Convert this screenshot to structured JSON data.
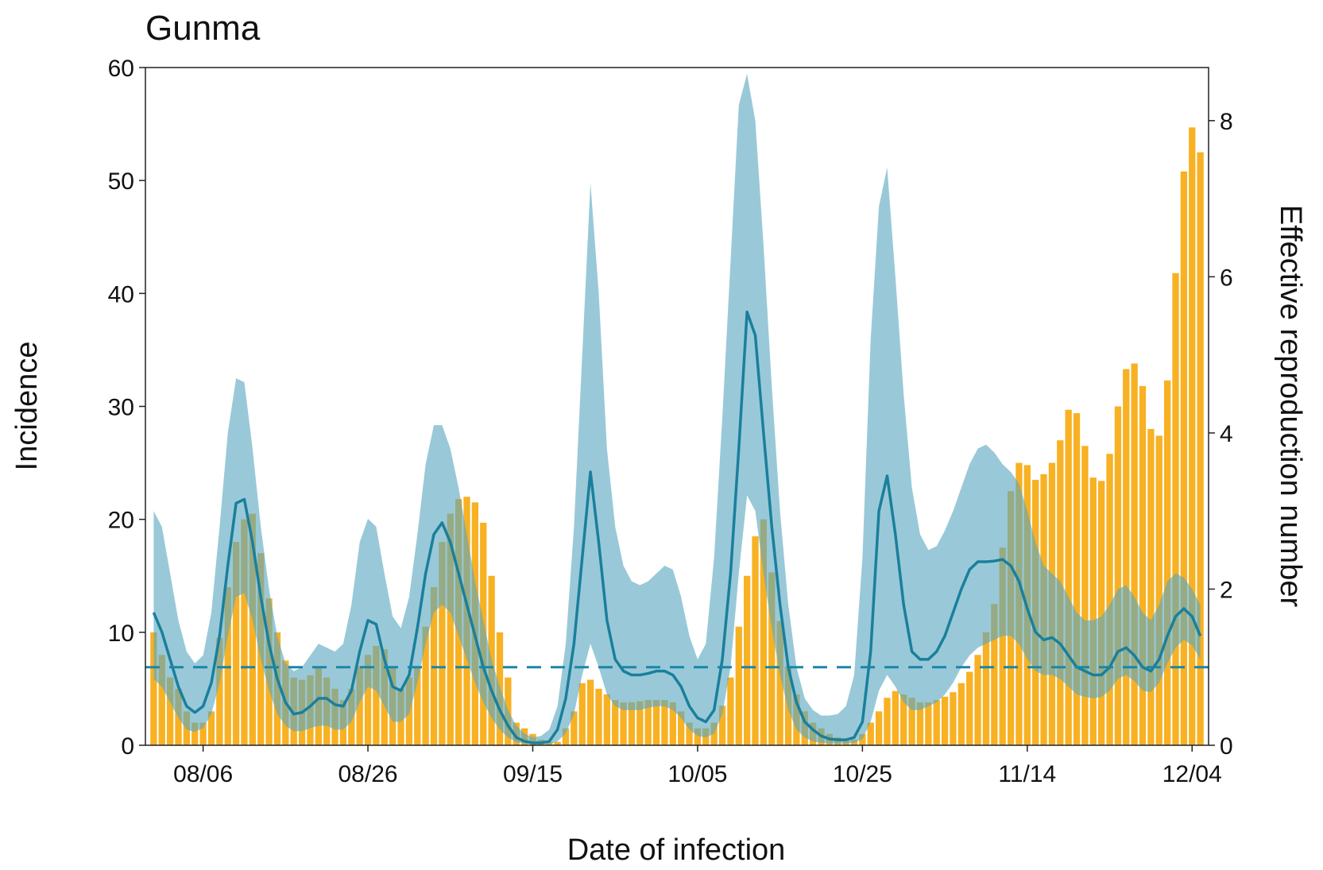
{
  "chart_data": {
    "type": "combo",
    "title": "Gunma",
    "xlabel": "Date of infection",
    "ylabel": "Incidence",
    "y2label": "Effective reproduction number",
    "x": [
      "07/31",
      "08/01",
      "08/02",
      "08/03",
      "08/04",
      "08/05",
      "08/06",
      "08/07",
      "08/08",
      "08/09",
      "08/10",
      "08/11",
      "08/12",
      "08/13",
      "08/14",
      "08/15",
      "08/16",
      "08/17",
      "08/18",
      "08/19",
      "08/20",
      "08/21",
      "08/22",
      "08/23",
      "08/24",
      "08/25",
      "08/26",
      "08/27",
      "08/28",
      "08/29",
      "08/30",
      "08/31",
      "09/01",
      "09/02",
      "09/03",
      "09/04",
      "09/05",
      "09/06",
      "09/07",
      "09/08",
      "09/09",
      "09/10",
      "09/11",
      "09/12",
      "09/13",
      "09/14",
      "09/15",
      "09/16",
      "09/17",
      "09/18",
      "09/19",
      "09/20",
      "09/21",
      "09/22",
      "09/23",
      "09/24",
      "09/25",
      "09/26",
      "09/27",
      "09/28",
      "09/29",
      "09/30",
      "10/01",
      "10/02",
      "10/03",
      "10/04",
      "10/05",
      "10/06",
      "10/07",
      "10/08",
      "10/09",
      "10/10",
      "10/11",
      "10/12",
      "10/13",
      "10/14",
      "10/15",
      "10/16",
      "10/17",
      "10/18",
      "10/19",
      "10/20",
      "10/21",
      "10/22",
      "10/23",
      "10/24",
      "10/25",
      "10/26",
      "10/27",
      "10/28",
      "10/29",
      "10/30",
      "10/31",
      "11/01",
      "11/02",
      "11/03",
      "11/04",
      "11/05",
      "11/06",
      "11/07",
      "11/08",
      "11/09",
      "11/10",
      "11/11",
      "11/12",
      "11/13",
      "11/14",
      "11/15",
      "11/16",
      "11/17",
      "11/18",
      "11/19",
      "11/20",
      "11/21",
      "11/22",
      "11/23",
      "11/24",
      "11/25",
      "11/26",
      "11/27",
      "11/28",
      "11/29",
      "11/30",
      "12/01",
      "12/02",
      "12/03",
      "12/04",
      "12/05"
    ],
    "xlim": [
      "07/30",
      "12/06"
    ],
    "xticks": [
      "08/06",
      "08/26",
      "09/15",
      "10/05",
      "10/25",
      "11/14",
      "12/04"
    ],
    "ylim": [
      0,
      60
    ],
    "yticks": [
      0,
      10,
      20,
      30,
      40,
      50,
      60
    ],
    "y2lim": [
      0,
      8.68
    ],
    "y2ticks": [
      0,
      2,
      4,
      6,
      8
    ],
    "series": [
      {
        "type": "bar",
        "color": "#f7b123",
        "values": [
          10,
          8,
          6,
          5,
          3,
          2,
          2,
          3,
          9.5,
          14,
          18,
          20,
          20.5,
          17,
          13,
          10,
          7.5,
          6,
          5.8,
          6.2,
          7,
          6,
          5,
          4,
          5,
          7,
          8,
          8.8,
          8.5,
          7,
          5,
          6,
          7,
          10.5,
          14,
          18,
          20.5,
          21.8,
          22,
          21.5,
          19.7,
          15,
          10,
          6,
          2,
          1.5,
          1,
          0.5,
          0.3,
          0.3,
          1.5,
          3,
          5.5,
          5.8,
          5,
          4.5,
          4,
          3.8,
          3.8,
          3.9,
          4,
          4,
          4,
          3.8,
          3,
          2,
          1.5,
          1.5,
          2,
          3.5,
          6,
          10.5,
          15,
          18.5,
          20,
          15.3,
          11,
          7,
          4.5,
          3,
          2,
          1.5,
          1,
          0.7,
          0.5,
          0.5,
          1,
          2,
          3,
          4.2,
          4.8,
          4.5,
          4.2,
          3.8,
          3.8,
          4,
          4.3,
          4.7,
          5.5,
          6.5,
          8,
          10,
          12.5,
          17.5,
          22.5,
          25,
          24.8,
          23.5,
          24,
          25,
          27,
          29.7,
          29.4,
          26.5,
          23.7,
          23.4,
          25.8,
          30,
          33.3,
          33.8,
          31.8,
          28,
          27.4,
          32.3,
          41.8,
          50.8,
          54.7,
          52.5
        ]
      },
      {
        "type": "band",
        "axis": "y2",
        "color": "#5aa8c0",
        "upper": [
          3.0,
          2.8,
          2.2,
          1.6,
          1.2,
          1.05,
          1.15,
          1.7,
          2.8,
          4.0,
          4.7,
          4.65,
          3.8,
          2.8,
          2.0,
          1.4,
          1.05,
          0.95,
          1.0,
          1.15,
          1.3,
          1.25,
          1.2,
          1.3,
          1.8,
          2.6,
          2.9,
          2.8,
          2.2,
          1.65,
          1.5,
          1.9,
          2.7,
          3.6,
          4.1,
          4.1,
          3.8,
          3.3,
          2.7,
          2.1,
          1.6,
          1.1,
          0.75,
          0.45,
          0.25,
          0.15,
          0.1,
          0.12,
          0.2,
          0.5,
          1.3,
          2.8,
          5.0,
          7.2,
          5.8,
          3.8,
          2.8,
          2.3,
          2.1,
          2.05,
          2.1,
          2.2,
          2.3,
          2.25,
          1.9,
          1.4,
          1.1,
          1.3,
          2.4,
          4.2,
          6.2,
          8.2,
          8.6,
          8.0,
          6.4,
          4.6,
          3.0,
          1.8,
          1.0,
          0.6,
          0.45,
          0.38,
          0.38,
          0.4,
          0.5,
          0.9,
          2.4,
          5.2,
          6.9,
          7.4,
          6.0,
          4.5,
          3.3,
          2.7,
          2.5,
          2.55,
          2.75,
          3.0,
          3.3,
          3.6,
          3.8,
          3.85,
          3.75,
          3.6,
          3.5,
          3.35,
          3.0,
          2.6,
          2.3,
          2.2,
          2.1,
          1.9,
          1.7,
          1.6,
          1.6,
          1.65,
          1.8,
          2.0,
          2.05,
          1.9,
          1.7,
          1.6,
          1.8,
          2.1,
          2.2,
          2.15,
          2.0,
          1.8
        ],
        "lower": [
          0.85,
          0.75,
          0.55,
          0.35,
          0.2,
          0.17,
          0.22,
          0.4,
          0.8,
          1.4,
          1.9,
          1.95,
          1.6,
          1.1,
          0.7,
          0.4,
          0.25,
          0.18,
          0.18,
          0.22,
          0.25,
          0.25,
          0.2,
          0.2,
          0.3,
          0.55,
          0.75,
          0.7,
          0.5,
          0.3,
          0.3,
          0.4,
          0.8,
          1.3,
          1.7,
          1.8,
          1.7,
          1.4,
          1.1,
          0.8,
          0.55,
          0.35,
          0.2,
          0.1,
          0.04,
          0.02,
          0.01,
          0.01,
          0.01,
          0.05,
          0.15,
          0.4,
          0.9,
          1.3,
          1.0,
          0.65,
          0.5,
          0.45,
          0.45,
          0.45,
          0.48,
          0.5,
          0.5,
          0.45,
          0.35,
          0.2,
          0.12,
          0.1,
          0.15,
          0.4,
          1.0,
          2.2,
          3.2,
          3.0,
          2.2,
          1.5,
          0.9,
          0.45,
          0.2,
          0.1,
          0.05,
          0.03,
          0.02,
          0.02,
          0.02,
          0.03,
          0.08,
          0.3,
          0.7,
          0.9,
          0.75,
          0.55,
          0.45,
          0.45,
          0.5,
          0.55,
          0.65,
          0.8,
          1.0,
          1.15,
          1.25,
          1.3,
          1.35,
          1.4,
          1.4,
          1.3,
          1.1,
          0.95,
          0.9,
          0.9,
          0.85,
          0.75,
          0.65,
          0.62,
          0.6,
          0.62,
          0.7,
          0.85,
          0.9,
          0.82,
          0.7,
          0.68,
          0.8,
          1.05,
          1.25,
          1.35,
          1.28,
          1.1
        ]
      },
      {
        "type": "line",
        "axis": "y2",
        "color": "#1a7f9c",
        "values": [
          1.7,
          1.45,
          1.1,
          0.75,
          0.5,
          0.42,
          0.5,
          0.8,
          1.4,
          2.3,
          3.1,
          3.15,
          2.6,
          1.9,
          1.3,
          0.85,
          0.55,
          0.4,
          0.42,
          0.5,
          0.6,
          0.6,
          0.52,
          0.5,
          0.7,
          1.2,
          1.6,
          1.55,
          1.1,
          0.75,
          0.7,
          0.9,
          1.5,
          2.2,
          2.7,
          2.85,
          2.6,
          2.2,
          1.8,
          1.4,
          1.0,
          0.7,
          0.45,
          0.25,
          0.1,
          0.05,
          0.03,
          0.03,
          0.05,
          0.2,
          0.6,
          1.3,
          2.4,
          3.5,
          2.6,
          1.6,
          1.1,
          0.95,
          0.9,
          0.9,
          0.92,
          0.95,
          0.95,
          0.9,
          0.75,
          0.5,
          0.35,
          0.3,
          0.45,
          1.1,
          2.2,
          3.8,
          5.55,
          5.25,
          4.0,
          2.8,
          1.8,
          1.0,
          0.55,
          0.3,
          0.2,
          0.12,
          0.08,
          0.07,
          0.07,
          0.1,
          0.3,
          1.2,
          3.0,
          3.45,
          2.7,
          1.8,
          1.2,
          1.1,
          1.1,
          1.2,
          1.4,
          1.7,
          2.0,
          2.25,
          2.35,
          2.35,
          2.36,
          2.38,
          2.3,
          2.1,
          1.75,
          1.45,
          1.35,
          1.38,
          1.3,
          1.15,
          1.0,
          0.95,
          0.9,
          0.9,
          1.0,
          1.2,
          1.25,
          1.15,
          1.0,
          0.95,
          1.1,
          1.4,
          1.65,
          1.75,
          1.65,
          1.4
        ]
      }
    ],
    "reference_line": {
      "axis": "y2",
      "value": 1,
      "color": "#1a86a8",
      "dashed": true
    }
  }
}
